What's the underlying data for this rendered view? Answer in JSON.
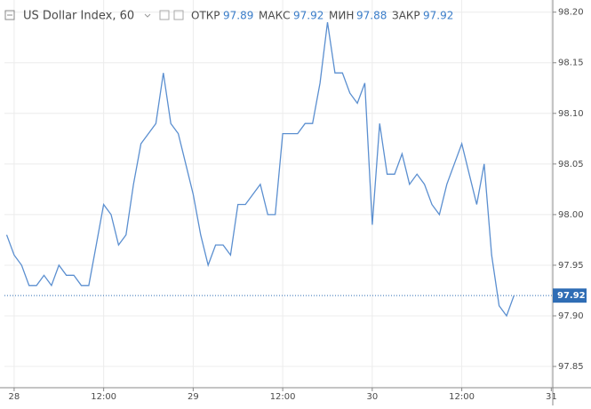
{
  "chart_data": {
    "type": "line",
    "title": "US Dollar Index, 60",
    "ohlc": [
      {
        "label": "ОТКР",
        "value": 97.89
      },
      {
        "label": "МАКС",
        "value": 97.92
      },
      {
        "label": "МИН",
        "value": 97.88
      },
      {
        "label": "ЗАКР",
        "value": 97.92
      }
    ],
    "x": [
      -1,
      0,
      1,
      2,
      3,
      4,
      5,
      6,
      7,
      8,
      9,
      10,
      11,
      12,
      13,
      14,
      15,
      16,
      17,
      18,
      19,
      20,
      21,
      22,
      23,
      24,
      25,
      26,
      27,
      28,
      29,
      30,
      31,
      32,
      33,
      34,
      35,
      36,
      37,
      38,
      39,
      40,
      41,
      42,
      43,
      44,
      45,
      46,
      47,
      48,
      49,
      50,
      51,
      52,
      53,
      54,
      55,
      56,
      57,
      58,
      59,
      60,
      61,
      62,
      63,
      64,
      65,
      66,
      67
    ],
    "series": [
      {
        "color": "#5b8fd0",
        "values": [
          97.98,
          97.96,
          97.95,
          97.93,
          97.93,
          97.94,
          97.93,
          97.95,
          97.94,
          97.94,
          97.93,
          97.93,
          97.97,
          98.01,
          98.0,
          97.97,
          97.98,
          98.03,
          98.07,
          98.08,
          98.09,
          98.14,
          98.09,
          98.08,
          98.05,
          98.02,
          97.98,
          97.95,
          97.97,
          97.97,
          97.96,
          98.01,
          98.01,
          98.02,
          98.03,
          98.0,
          98.0,
          98.08,
          98.08,
          98.08,
          98.09,
          98.09,
          98.13,
          98.19,
          98.14,
          98.14,
          98.12,
          98.11,
          98.13,
          97.99,
          98.09,
          98.04,
          98.04,
          98.06,
          98.03,
          98.04,
          98.03,
          98.01,
          98.0,
          98.03,
          98.05,
          98.07,
          98.04,
          98.01,
          98.05,
          97.96,
          97.91,
          97.9,
          97.92
        ]
      }
    ],
    "last_price": 97.92,
    "last_price_color": "#2f6db5",
    "xlim": [
      -1.3,
      72.2
    ],
    "xticks": [
      {
        "value": 0,
        "label": "28"
      },
      {
        "value": 12,
        "label": "12:00"
      },
      {
        "value": 24,
        "label": "29"
      },
      {
        "value": 36,
        "label": "12:00"
      },
      {
        "value": 48,
        "label": "30"
      },
      {
        "value": 60,
        "label": "12:00"
      },
      {
        "value": 72,
        "label": "31"
      }
    ],
    "ylim": [
      97.829,
      98.212
    ],
    "yticks": [
      97.85,
      {
        "value": 97.9,
        "label": "97.90"
      },
      97.95,
      {
        "value": 98.0,
        "label": "98.00"
      },
      98.05,
      {
        "value": 98.1,
        "label": "98.10"
      },
      98.15,
      {
        "value": 98.2,
        "label": "98.20"
      }
    ],
    "grid": true
  }
}
